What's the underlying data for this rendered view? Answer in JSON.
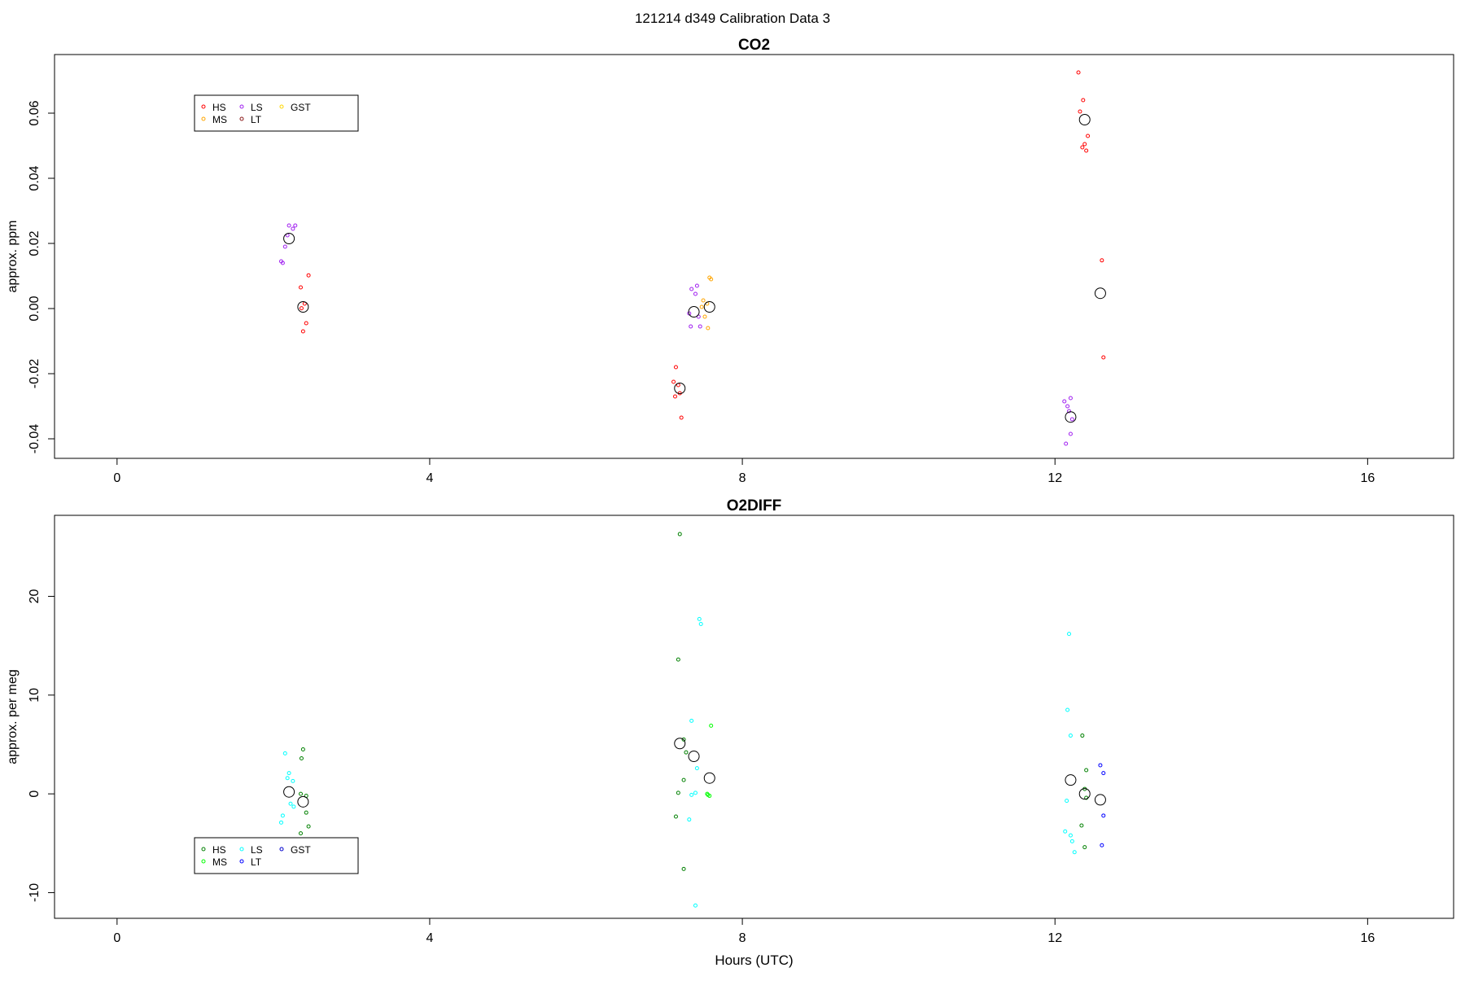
{
  "figure": {
    "title": "121214   d349   Calibration Data 3"
  },
  "chart_data": [
    {
      "type": "scatter",
      "title": "CO2",
      "xlabel": "",
      "ylabel": "approx. ppm",
      "xlim": [
        -0.8,
        17.1
      ],
      "ylim": [
        -0.046,
        0.078
      ],
      "xticks": [
        0,
        4,
        8,
        12,
        16
      ],
      "yticks": [
        -0.04,
        -0.02,
        0.0,
        0.02,
        0.04,
        0.06
      ],
      "ytick_labels": [
        "-0.04",
        "-0.02",
        "0.00",
        "0.02",
        "0.04",
        "0.06"
      ],
      "grid": false,
      "legend": {
        "placement": "top-left",
        "entries": [
          "HS",
          "LS",
          "GST",
          "MS",
          "LT"
        ]
      },
      "series": [
        {
          "name": "HS",
          "color": "#ff0000",
          "points": [
            [
              2.35,
              0.0065
            ],
            [
              2.4,
              0.0015
            ],
            [
              2.42,
              -0.0045
            ],
            [
              2.38,
              -0.007
            ],
            [
              2.45,
              0.0102
            ],
            [
              2.36,
              0.0001
            ],
            [
              7.15,
              -0.018
            ],
            [
              7.12,
              -0.0225
            ],
            [
              7.18,
              -0.0235
            ],
            [
              7.14,
              -0.027
            ],
            [
              7.2,
              -0.026
            ],
            [
              7.22,
              -0.0335
            ],
            [
              12.3,
              0.0725
            ],
            [
              12.36,
              0.064
            ],
            [
              12.32,
              0.0605
            ],
            [
              12.42,
              0.053
            ],
            [
              12.35,
              0.0495
            ],
            [
              12.4,
              0.0485
            ],
            [
              12.38,
              0.0505
            ],
            [
              12.6,
              0.0148
            ],
            [
              12.62,
              -0.015
            ]
          ]
        },
        {
          "name": "LS",
          "color": "#a020f0",
          "points": [
            [
              2.1,
              0.0145
            ],
            [
              2.15,
              0.019
            ],
            [
              2.2,
              0.0255
            ],
            [
              2.25,
              0.0245
            ],
            [
              2.18,
              0.0225
            ],
            [
              2.12,
              0.014
            ],
            [
              2.28,
              0.0255
            ],
            [
              7.35,
              0.006
            ],
            [
              7.42,
              0.007
            ],
            [
              7.4,
              0.0045
            ],
            [
              7.32,
              -0.0015
            ],
            [
              7.44,
              -0.0025
            ],
            [
              7.34,
              -0.0055
            ],
            [
              7.46,
              -0.0055
            ],
            [
              12.12,
              -0.0285
            ],
            [
              12.16,
              -0.03
            ],
            [
              12.2,
              -0.0275
            ],
            [
              12.18,
              -0.0315
            ],
            [
              12.22,
              -0.034
            ],
            [
              12.2,
              -0.0385
            ],
            [
              12.14,
              -0.0415
            ]
          ]
        },
        {
          "name": "MS",
          "color": "#ffa500",
          "points": [
            [
              7.5,
              0.0025
            ],
            [
              7.55,
              0.0015
            ],
            [
              7.58,
              0.0095
            ],
            [
              7.52,
              -0.0025
            ],
            [
              7.56,
              -0.006
            ],
            [
              7.48,
              0.0005
            ],
            [
              7.6,
              0.009
            ]
          ]
        },
        {
          "name": "LT",
          "color": "#8b1a1a",
          "points": []
        },
        {
          "name": "GST",
          "color": "#ffd700",
          "points": []
        }
      ],
      "means": [
        [
          2.2,
          0.0215
        ],
        [
          2.38,
          0.0005
        ],
        [
          7.2,
          -0.0245
        ],
        [
          7.38,
          -0.001
        ],
        [
          7.58,
          0.0005
        ],
        [
          12.2,
          -0.0333
        ],
        [
          12.38,
          0.058
        ],
        [
          12.58,
          0.0047
        ]
      ]
    },
    {
      "type": "scatter",
      "title": "O2DIFF",
      "xlabel": "Hours (UTC)",
      "ylabel": "approx. per meg",
      "xlim": [
        -0.8,
        17.1
      ],
      "ylim": [
        -12.6,
        28.2
      ],
      "xticks": [
        0,
        4,
        8,
        12,
        16
      ],
      "yticks": [
        -10,
        0,
        10,
        20
      ],
      "ytick_labels": [
        "-10",
        "0",
        "10",
        "20"
      ],
      "grid": false,
      "legend": {
        "placement": "bottom-left",
        "entries": [
          "HS",
          "LS",
          "GST",
          "MS",
          "LT"
        ]
      },
      "series": [
        {
          "name": "HS",
          "color": "#008000",
          "points": [
            [
              2.38,
              4.5
            ],
            [
              2.36,
              3.6
            ],
            [
              2.35,
              0.0
            ],
            [
              2.42,
              -0.2
            ],
            [
              2.42,
              -1.9
            ],
            [
              2.45,
              -3.3
            ],
            [
              2.35,
              -4.0
            ],
            [
              7.2,
              26.3
            ],
            [
              7.18,
              13.6
            ],
            [
              7.25,
              5.5
            ],
            [
              7.28,
              4.2
            ],
            [
              7.25,
              1.4
            ],
            [
              7.18,
              0.1
            ],
            [
              7.15,
              -2.3
            ],
            [
              7.25,
              -7.6
            ],
            [
              12.35,
              5.9
            ],
            [
              12.4,
              2.4
            ],
            [
              12.38,
              0.5
            ],
            [
              12.4,
              -0.4
            ],
            [
              12.34,
              -3.2
            ],
            [
              12.38,
              -5.4
            ]
          ]
        },
        {
          "name": "LS",
          "color": "#00ffff",
          "points": [
            [
              2.15,
              4.1
            ],
            [
              2.2,
              2.1
            ],
            [
              2.18,
              1.6
            ],
            [
              2.25,
              1.3
            ],
            [
              2.22,
              -1.0
            ],
            [
              2.26,
              -1.3
            ],
            [
              2.12,
              -2.2
            ],
            [
              2.1,
              -2.9
            ],
            [
              7.45,
              17.7
            ],
            [
              7.47,
              17.2
            ],
            [
              7.35,
              7.4
            ],
            [
              7.42,
              2.6
            ],
            [
              7.4,
              0.1
            ],
            [
              7.35,
              -0.1
            ],
            [
              7.32,
              -2.6
            ],
            [
              7.4,
              -11.3
            ],
            [
              12.18,
              16.2
            ],
            [
              12.16,
              8.5
            ],
            [
              12.2,
              5.9
            ],
            [
              12.15,
              -0.7
            ],
            [
              12.13,
              -3.8
            ],
            [
              12.2,
              -4.2
            ],
            [
              12.22,
              -4.8
            ],
            [
              12.25,
              -5.9
            ]
          ]
        },
        {
          "name": "MS",
          "color": "#00ff00",
          "points": [
            [
              7.6,
              6.9
            ],
            [
              7.55,
              0.0
            ],
            [
              7.58,
              -0.2
            ],
            [
              7.56,
              -0.1
            ]
          ]
        },
        {
          "name": "LT",
          "color": "#0000ff",
          "points": [
            [
              12.58,
              2.9
            ],
            [
              12.62,
              2.1
            ],
            [
              12.62,
              -2.2
            ],
            [
              12.6,
              -5.2
            ]
          ]
        },
        {
          "name": "GST",
          "color": "#0000cd",
          "points": []
        }
      ],
      "means": [
        [
          2.2,
          0.2
        ],
        [
          2.38,
          -0.8
        ],
        [
          7.2,
          5.1
        ],
        [
          7.38,
          3.8
        ],
        [
          7.58,
          1.6
        ],
        [
          12.2,
          1.4
        ],
        [
          12.38,
          0.0
        ],
        [
          12.58,
          -0.6
        ]
      ]
    }
  ]
}
